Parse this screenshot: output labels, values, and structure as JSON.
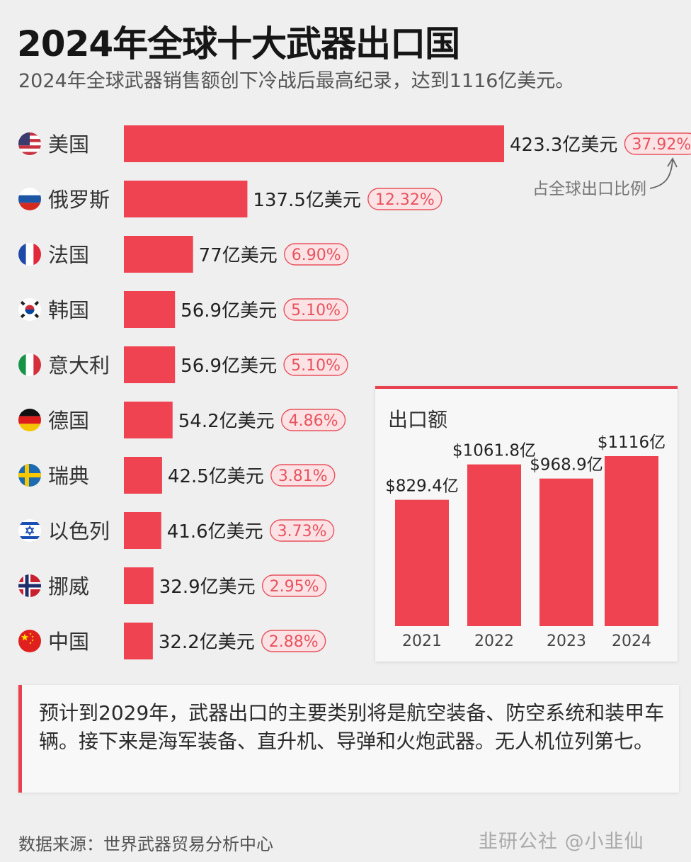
{
  "header": {
    "title": "2024年全球十大武器出口国",
    "subtitle": "2024年全球武器销售额创下冷战后最高纪录，达到1116亿美元。"
  },
  "colors": {
    "accent": "#ef4351",
    "pct_text": "#e8525d",
    "pct_badge_bg": "#fbe3e5"
  },
  "chart_data": [
    {
      "type": "bar",
      "orientation": "horizontal",
      "title": "2024年全球十大武器出口国",
      "categories": [
        "美国",
        "俄罗斯",
        "法国",
        "韩国",
        "意大利",
        "德国",
        "瑞典",
        "以色列",
        "挪威",
        "中国"
      ],
      "flags": [
        "us-flag-icon",
        "russia-flag-icon",
        "france-flag-icon",
        "korea-flag-icon",
        "italy-flag-icon",
        "germany-flag-icon",
        "sweden-flag-icon",
        "israel-flag-icon",
        "norway-flag-icon",
        "china-flag-icon"
      ],
      "values": [
        423.3,
        137.5,
        77,
        56.9,
        56.9,
        54.2,
        42.5,
        41.6,
        32.9,
        32.2
      ],
      "value_labels": [
        "423.3亿美元",
        "137.5亿美元",
        "77亿美元",
        "56.9亿美元",
        "56.9亿美元",
        "54.2亿美元",
        "42.5亿美元",
        "41.6亿美元",
        "32.9亿美元",
        "32.2亿美元"
      ],
      "shares": [
        "37.92%",
        "12.32%",
        "6.90%",
        "5.10%",
        "5.10%",
        "4.86%",
        "3.81%",
        "3.73%",
        "2.95%",
        "2.88%"
      ],
      "unit": "亿美元",
      "annotation": "占全球出口比例"
    },
    {
      "type": "bar",
      "title": "出口额",
      "categories": [
        "2021",
        "2022",
        "2023",
        "2024"
      ],
      "values": [
        829.4,
        1061.8,
        968.9,
        1116
      ],
      "value_labels": [
        "$829.4亿",
        "$1061.8亿",
        "$968.9亿",
        "$1116亿"
      ],
      "unit": "亿美元"
    }
  ],
  "note": {
    "text": "预计到2029年，武器出口的主要类别将是航空装备、防空系统和装甲车辆。接下来是海军装备、直升机、导弹和火炮武器。无人机位列第七。"
  },
  "footer": {
    "source": "数据来源：世界武器贸易分析中心",
    "watermark": "韭研公社 @小韭仙"
  }
}
